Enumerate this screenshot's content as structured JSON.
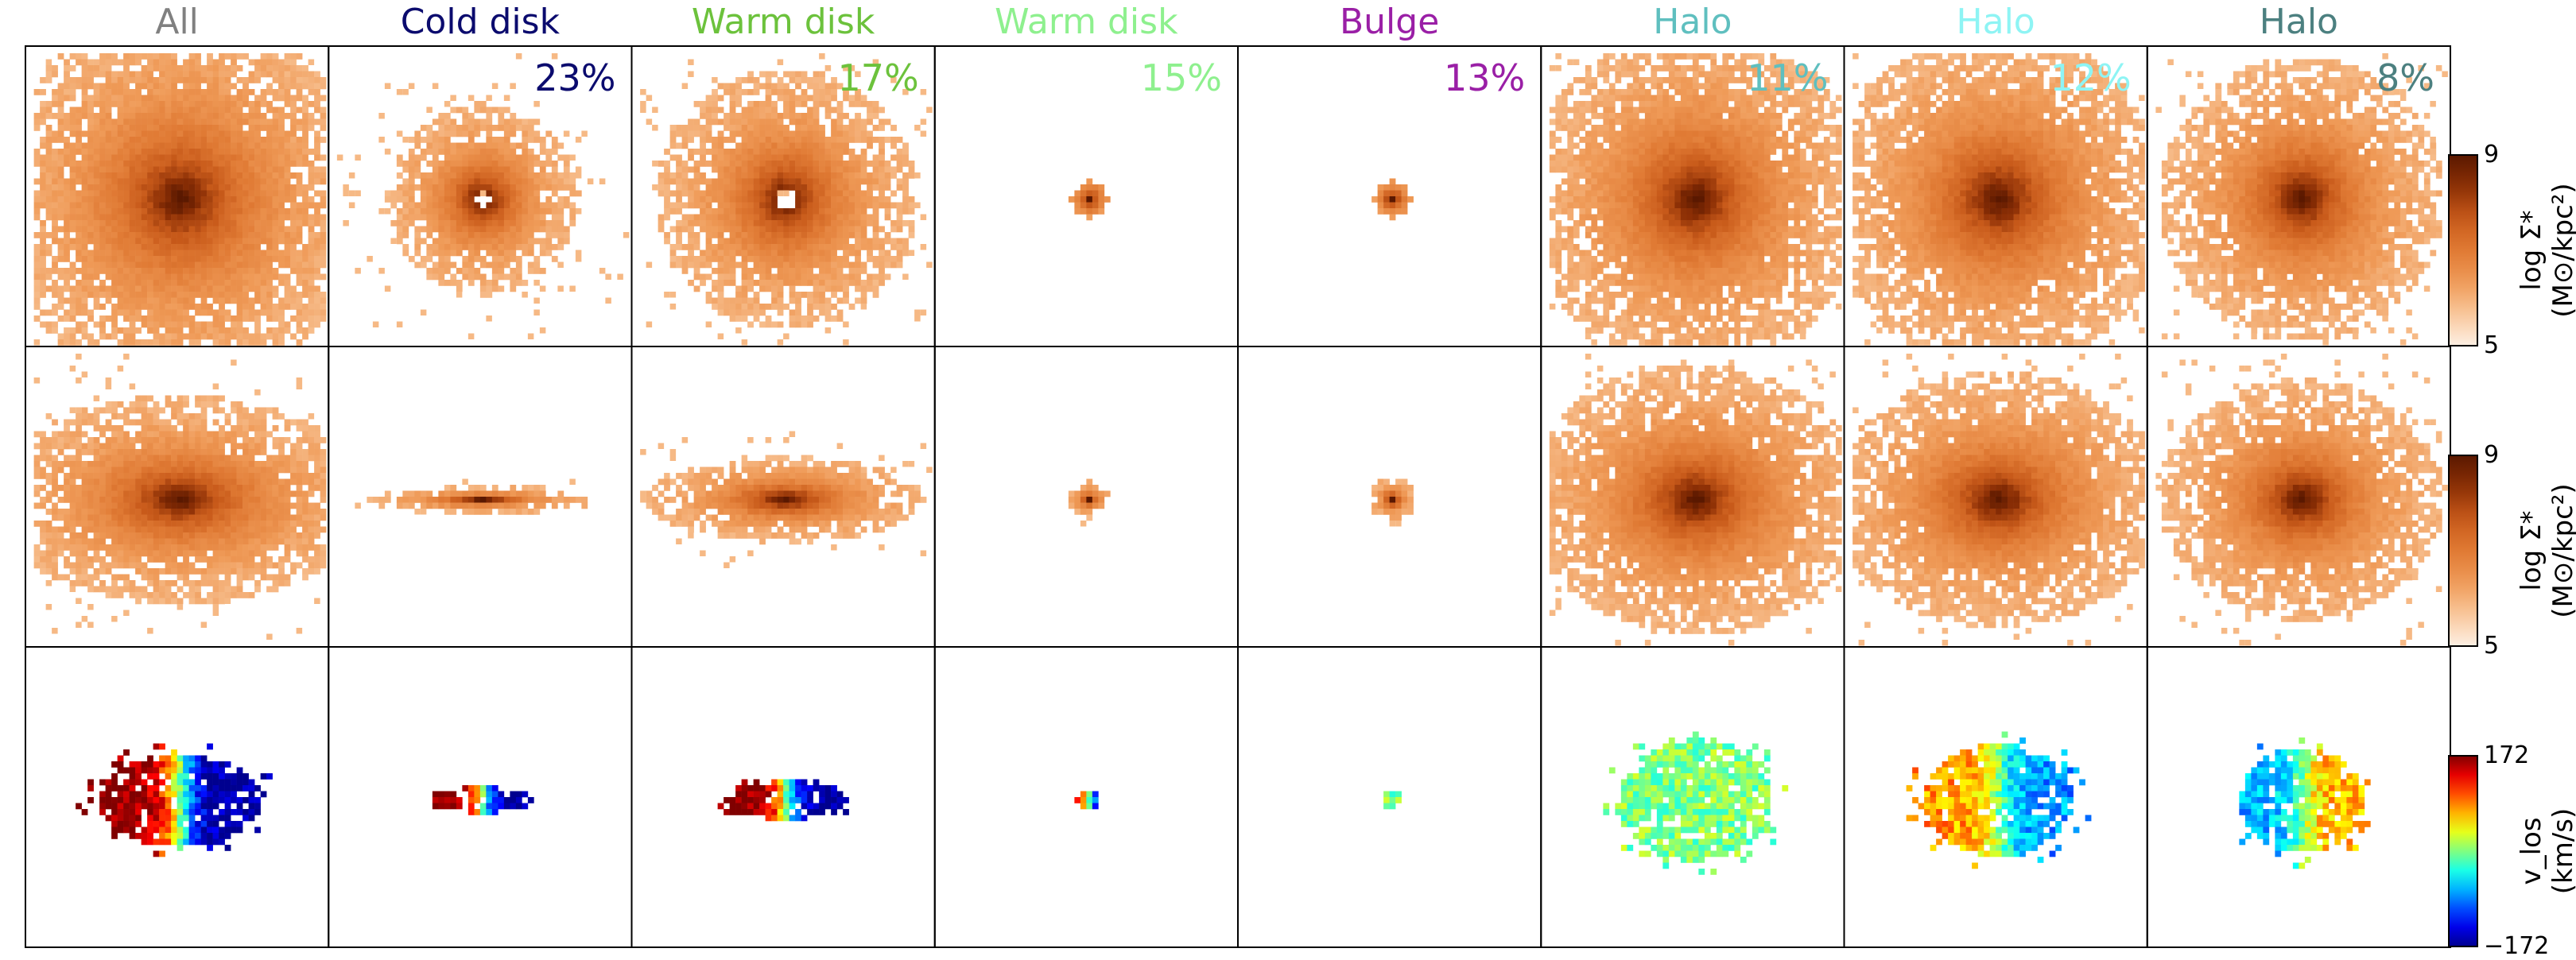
{
  "columns": [
    {
      "title": "All",
      "color": "#808080",
      "fraction": ""
    },
    {
      "title": "Cold disk",
      "color": "#0b0b6e",
      "fraction": "23%"
    },
    {
      "title": "Warm disk",
      "color": "#6cc23c",
      "fraction": "17%"
    },
    {
      "title": "Warm disk",
      "color": "#8ef08e",
      "fraction": "15%"
    },
    {
      "title": "Bulge",
      "color": "#9a1fa6",
      "fraction": "13%"
    },
    {
      "title": "Halo",
      "color": "#5fbfbf",
      "fraction": "11%"
    },
    {
      "title": "Halo",
      "color": "#8ef4f4",
      "fraction": "12%"
    },
    {
      "title": "Halo",
      "color": "#4c8080",
      "fraction": "8%"
    }
  ],
  "colorbars": {
    "density_face": {
      "max": "9",
      "min": "5",
      "label_line1": "log Σ*",
      "label_line2": "(M⊙/kpc²)"
    },
    "density_edge": {
      "max": "9",
      "min": "5",
      "label_line1": "log Σ*",
      "label_line2": "(M⊙/kpc²)"
    },
    "velocity": {
      "max": "172",
      "min": "−172",
      "label_line1": "v_los",
      "label_line2": "(km/s)"
    }
  },
  "chart_data": {
    "type": "heatmap",
    "rows": [
      "face-on surface density",
      "edge-on surface density",
      "line-of-sight velocity"
    ],
    "density_range": [
      5,
      9
    ],
    "velocity_range": [
      -172,
      172
    ],
    "components": [
      {
        "name": "All",
        "fraction": null,
        "face_on": {
          "shape": "centrally-peaked",
          "extent": 1.0,
          "hole": false
        },
        "edge_on": {
          "flattening": 0.55,
          "extent": 1.0
        },
        "velocity": {
          "rotation": "strong"
        }
      },
      {
        "name": "Cold disk",
        "fraction": 23,
        "face_on": {
          "shape": "ring",
          "extent": 0.55,
          "hole": true
        },
        "edge_on": {
          "flattening": 0.12,
          "extent": 0.6
        },
        "velocity": {
          "rotation": "strong"
        }
      },
      {
        "name": "Warm disk",
        "fraction": 17,
        "face_on": {
          "shape": "ring",
          "extent": 0.75,
          "hole": true
        },
        "edge_on": {
          "flattening": 0.3,
          "extent": 0.75
        },
        "velocity": {
          "rotation": "strong"
        }
      },
      {
        "name": "Warm disk",
        "fraction": 15,
        "face_on": {
          "shape": "compact",
          "extent": 0.12,
          "hole": false
        },
        "edge_on": {
          "flattening": 0.8,
          "extent": 0.12
        },
        "velocity": {
          "rotation": "weak"
        }
      },
      {
        "name": "Bulge",
        "fraction": 13,
        "face_on": {
          "shape": "compact",
          "extent": 0.12,
          "hole": false
        },
        "edge_on": {
          "flattening": 1.0,
          "extent": 0.12
        },
        "velocity": {
          "rotation": "none"
        }
      },
      {
        "name": "Halo",
        "fraction": 11,
        "face_on": {
          "shape": "diffuse",
          "extent": 0.9,
          "hole": false
        },
        "edge_on": {
          "flattening": 0.8,
          "extent": 0.9
        },
        "velocity": {
          "rotation": "none"
        }
      },
      {
        "name": "Halo",
        "fraction": 12,
        "face_on": {
          "shape": "diffuse",
          "extent": 0.9,
          "hole": false
        },
        "edge_on": {
          "flattening": 0.75,
          "extent": 0.9
        },
        "velocity": {
          "rotation": "moderate"
        }
      },
      {
        "name": "Halo",
        "fraction": 8,
        "face_on": {
          "shape": "diffuse",
          "extent": 0.75,
          "hole": false
        },
        "edge_on": {
          "flattening": 0.85,
          "extent": 0.75
        },
        "velocity": {
          "rotation": "moderate-reversed"
        }
      }
    ]
  }
}
